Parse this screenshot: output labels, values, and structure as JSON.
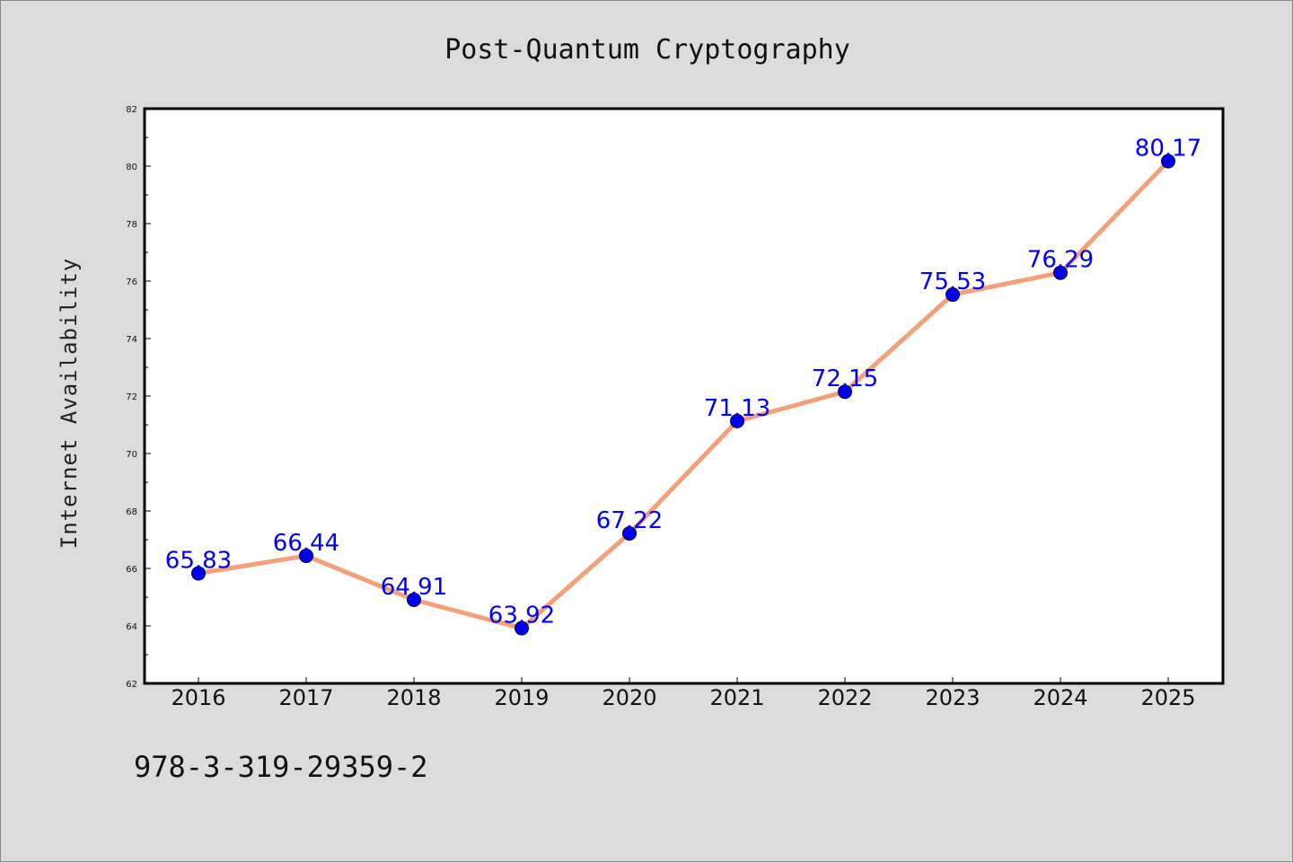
{
  "chart_data": {
    "type": "line",
    "title": "Post-Quantum Cryptography",
    "xlabel": "",
    "ylabel": "Internet Availability",
    "categories": [
      "2016",
      "2017",
      "2018",
      "2019",
      "2020",
      "2021",
      "2022",
      "2023",
      "2024",
      "2025"
    ],
    "values": [
      65.83,
      66.44,
      64.91,
      63.92,
      67.22,
      71.13,
      72.15,
      75.53,
      76.29,
      80.17
    ],
    "data_labels": [
      "65.83",
      "66.44",
      "64.91",
      "63.92",
      "67.22",
      "71.13",
      "72.15",
      "75.53",
      "76.29",
      "80.17"
    ],
    "ylim": [
      62,
      82
    ],
    "yticks": [
      "62",
      "64",
      "66",
      "68",
      "70",
      "72",
      "74",
      "76",
      "78",
      "80",
      "82"
    ],
    "grid": false,
    "colors": {
      "line": "#f4a07a",
      "marker": "#0000ee",
      "label": "#0000ee",
      "background": "#dcdcdc",
      "plot_background": "#ffffff"
    }
  },
  "footer": {
    "text": "978-3-319-29359-2"
  }
}
